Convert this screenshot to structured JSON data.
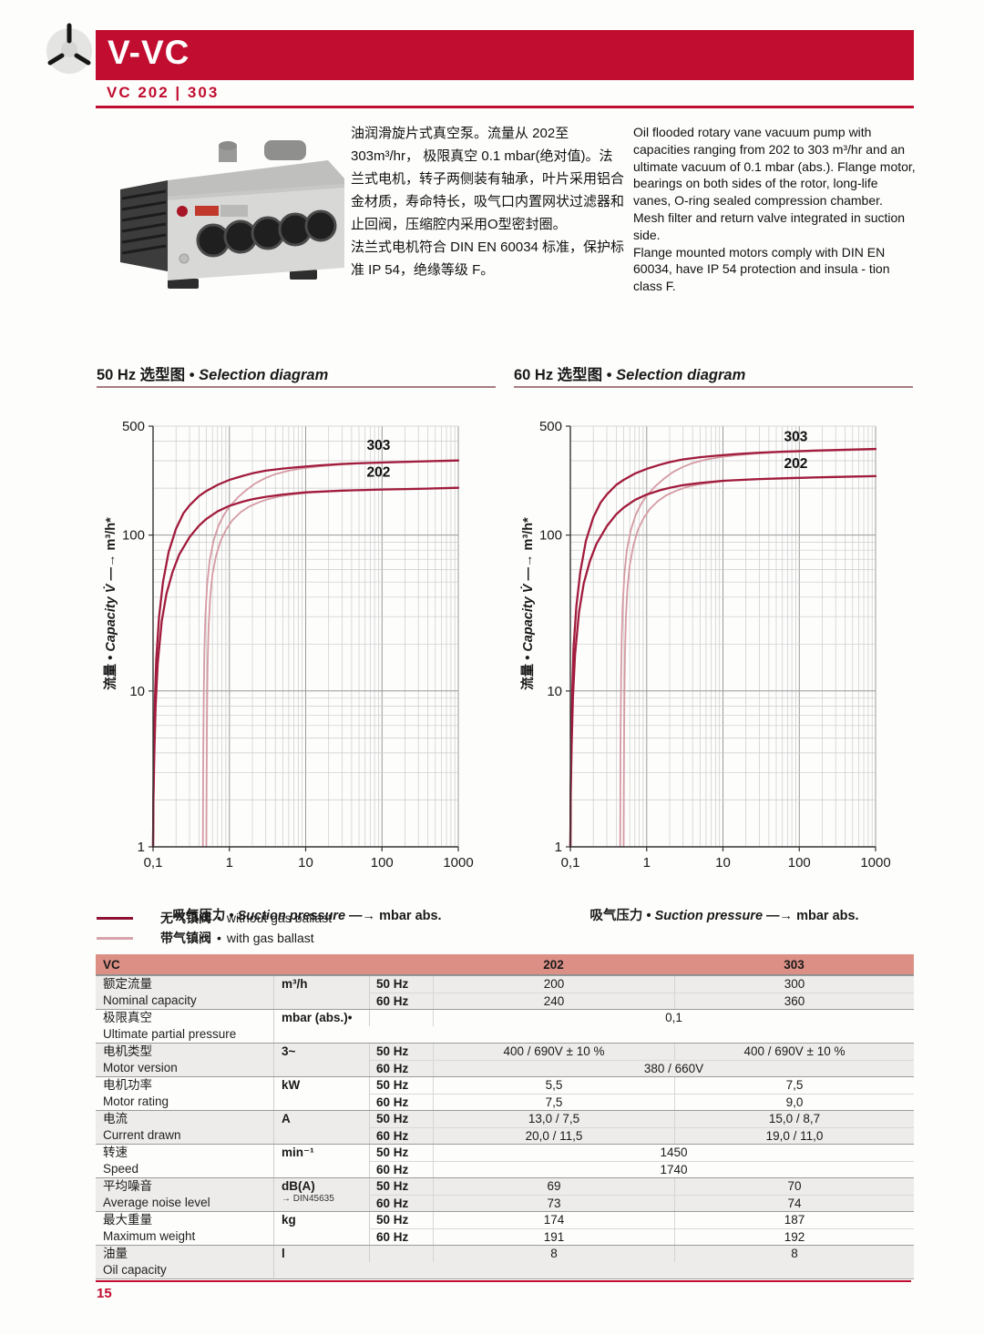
{
  "ui": {
    "title_sep": "•",
    "bullet": "•",
    "arrow": "—→"
  },
  "header": {
    "product": "V-VC",
    "model": "VC 202 | 303",
    "accent": "#c10d2f"
  },
  "intro": {
    "zh_p1": "油润滑旋片式真空泵。流量从 202至 303m³/hr， 极限真空 0.1 mbar(绝对值)。法兰式电机，转子两侧装有轴承，叶片采用铝合金材质，寿命特长，吸气口内置网状过滤器和止回阀，压缩腔内采用O型密封圈。",
    "zh_p2": "法兰式电机符合 DIN EN 60034 标准，保护标准 IP 54，绝缘等级 F。",
    "en_p1": "Oil flooded rotary vane vacuum pump with capacities ranging from 202 to 303 m³/hr and an ultimate vacuum of 0.1 mbar (abs.). Flange motor, bearings on both sides of the rotor, long-life vanes, O-ring sealed compression chamber. Mesh filter and return valve integrated in suction side.",
    "en_p2": "Flange mounted motors comply with DIN EN 60034, have IP 54 protection and insula - tion class F."
  },
  "legend": [
    {
      "zh": "无气镇阀",
      "en": "without gas ballast",
      "color": "#8e1132"
    },
    {
      "zh": "带气镇阀",
      "en": "with gas ballast",
      "color": "#d7a3ab"
    }
  ],
  "chart_data": [
    {
      "type": "line",
      "title_zh": "50 Hz 选型图",
      "title_en": "Selection diagram",
      "xlabel_zh": "吸气压力",
      "xlabel_en": "Suction pressure",
      "xunit": "mbar abs.",
      "ylabel_zh": "流量",
      "ylabel_en": "Capacity V̇",
      "yunit": "m³/h*",
      "xscale": "log",
      "yscale": "log",
      "grid": true,
      "xlim": [
        0.1,
        1000
      ],
      "ylim": [
        1,
        500
      ],
      "xticks": [
        "0,1",
        "1",
        "10",
        "100",
        "1000"
      ],
      "yticks": [
        "1",
        "10",
        "100",
        "500"
      ],
      "series": [
        {
          "name": "303",
          "gas_ballast": false,
          "color": "#a11b3c",
          "points": [
            [
              0.1,
              1
            ],
            [
              0.101,
              2.2
            ],
            [
              0.103,
              4.5
            ],
            [
              0.106,
              9
            ],
            [
              0.11,
              16
            ],
            [
              0.12,
              30
            ],
            [
              0.135,
              50
            ],
            [
              0.16,
              78
            ],
            [
              0.2,
              110
            ],
            [
              0.25,
              138
            ],
            [
              0.3,
              155
            ],
            [
              0.4,
              178
            ],
            [
              0.5,
              192
            ],
            [
              0.7,
              210
            ],
            [
              1,
              226
            ],
            [
              1.5,
              240
            ],
            [
              2,
              249
            ],
            [
              3,
              259
            ],
            [
              5,
              267
            ],
            [
              8,
              273
            ],
            [
              15,
              280
            ],
            [
              30,
              286
            ],
            [
              60,
              290
            ],
            [
              150,
              294
            ],
            [
              400,
              298
            ],
            [
              1000,
              301
            ]
          ]
        },
        {
          "name": "202",
          "gas_ballast": false,
          "color": "#a11b3c",
          "points": [
            [
              0.1,
              1
            ],
            [
              0.101,
              2
            ],
            [
              0.104,
              4
            ],
            [
              0.108,
              8
            ],
            [
              0.115,
              15
            ],
            [
              0.13,
              28
            ],
            [
              0.15,
              42
            ],
            [
              0.18,
              58
            ],
            [
              0.22,
              75
            ],
            [
              0.3,
              97
            ],
            [
              0.4,
              115
            ],
            [
              0.5,
              127
            ],
            [
              0.7,
              142
            ],
            [
              1,
              154
            ],
            [
              1.5,
              164
            ],
            [
              2,
              170
            ],
            [
              3,
              176
            ],
            [
              5,
              182
            ],
            [
              10,
              188
            ],
            [
              30,
              193
            ],
            [
              100,
              196
            ],
            [
              300,
              198
            ],
            [
              1000,
              201
            ]
          ]
        },
        {
          "name": "303",
          "gas_ballast": true,
          "color": "#d59aa3",
          "points": [
            [
              0.45,
              1
            ],
            [
              0.452,
              2.5
            ],
            [
              0.456,
              5
            ],
            [
              0.462,
              10
            ],
            [
              0.47,
              18
            ],
            [
              0.485,
              30
            ],
            [
              0.51,
              48
            ],
            [
              0.55,
              68
            ],
            [
              0.62,
              92
            ],
            [
              0.72,
              115
            ],
            [
              0.85,
              135
            ],
            [
              1,
              152
            ],
            [
              1.3,
              175
            ],
            [
              1.7,
              196
            ],
            [
              2.2,
              215
            ],
            [
              3,
              233
            ],
            [
              4,
              246
            ],
            [
              6,
              259
            ],
            [
              9,
              268
            ],
            [
              15,
              276
            ],
            [
              25,
              282
            ],
            [
              50,
              288
            ],
            [
              120,
              292
            ],
            [
              350,
              296
            ],
            [
              1000,
              300
            ]
          ]
        },
        {
          "name": "202",
          "gas_ballast": true,
          "color": "#d59aa3",
          "points": [
            [
              0.5,
              1
            ],
            [
              0.502,
              2.2
            ],
            [
              0.506,
              4.5
            ],
            [
              0.512,
              9
            ],
            [
              0.52,
              16
            ],
            [
              0.535,
              26
            ],
            [
              0.56,
              40
            ],
            [
              0.6,
              56
            ],
            [
              0.67,
              74
            ],
            [
              0.77,
              92
            ],
            [
              0.9,
              108
            ],
            [
              1.1,
              125
            ],
            [
              1.4,
              140
            ],
            [
              1.8,
              152
            ],
            [
              2.4,
              162
            ],
            [
              3.2,
              170
            ],
            [
              4.5,
              177
            ],
            [
              7,
              183
            ],
            [
              12,
              188
            ],
            [
              25,
              192
            ],
            [
              70,
              195
            ],
            [
              200,
              198
            ],
            [
              1000,
              201
            ]
          ]
        }
      ],
      "labels": [
        {
          "text": "303",
          "x": 90,
          "y": 352
        },
        {
          "text": "202",
          "x": 90,
          "y": 237
        }
      ]
    },
    {
      "type": "line",
      "title_zh": "60 Hz 选型图",
      "title_en": "Selection diagram",
      "xlabel_zh": "吸气压力",
      "xlabel_en": "Suction pressure",
      "xunit": "mbar abs.",
      "ylabel_zh": "流量",
      "ylabel_en": "Capacity V̇",
      "yunit": "m³/h*",
      "xscale": "log",
      "yscale": "log",
      "grid": true,
      "xlim": [
        0.1,
        1000
      ],
      "ylim": [
        1,
        500
      ],
      "xticks": [
        "0,1",
        "1",
        "10",
        "100",
        "1000"
      ],
      "yticks": [
        "1",
        "10",
        "100",
        "500"
      ],
      "series": [
        {
          "name": "303",
          "gas_ballast": false,
          "color": "#a11b3c",
          "points": [
            [
              0.1,
              1
            ],
            [
              0.101,
              2.5
            ],
            [
              0.103,
              5
            ],
            [
              0.106,
              10
            ],
            [
              0.11,
              19
            ],
            [
              0.12,
              35
            ],
            [
              0.135,
              58
            ],
            [
              0.16,
              92
            ],
            [
              0.2,
              130
            ],
            [
              0.25,
              162
            ],
            [
              0.3,
              182
            ],
            [
              0.4,
              210
            ],
            [
              0.5,
              226
            ],
            [
              0.7,
              248
            ],
            [
              1,
              266
            ],
            [
              1.5,
              283
            ],
            [
              2,
              294
            ],
            [
              3,
              306
            ],
            [
              5,
              316
            ],
            [
              8,
              323
            ],
            [
              15,
              331
            ],
            [
              30,
              338
            ],
            [
              60,
              343
            ],
            [
              150,
              348
            ],
            [
              400,
              353
            ],
            [
              1000,
              357
            ]
          ]
        },
        {
          "name": "202",
          "gas_ballast": false,
          "color": "#a11b3c",
          "points": [
            [
              0.1,
              1
            ],
            [
              0.101,
              2.2
            ],
            [
              0.104,
              4.5
            ],
            [
              0.108,
              9
            ],
            [
              0.115,
              17
            ],
            [
              0.13,
              32
            ],
            [
              0.15,
              49
            ],
            [
              0.18,
              68
            ],
            [
              0.22,
              88
            ],
            [
              0.3,
              114
            ],
            [
              0.4,
              136
            ],
            [
              0.5,
              150
            ],
            [
              0.7,
              168
            ],
            [
              1,
              182
            ],
            [
              1.5,
              194
            ],
            [
              2,
              201
            ],
            [
              3,
              209
            ],
            [
              5,
              216
            ],
            [
              10,
              223
            ],
            [
              30,
              229
            ],
            [
              100,
              233
            ],
            [
              300,
              236
            ],
            [
              1000,
              239
            ]
          ]
        },
        {
          "name": "303",
          "gas_ballast": true,
          "color": "#d59aa3",
          "points": [
            [
              0.45,
              1
            ],
            [
              0.452,
              2.8
            ],
            [
              0.456,
              6
            ],
            [
              0.462,
              12
            ],
            [
              0.47,
              21
            ],
            [
              0.485,
              35
            ],
            [
              0.51,
              56
            ],
            [
              0.55,
              80
            ],
            [
              0.62,
              108
            ],
            [
              0.72,
              135
            ],
            [
              0.85,
              159
            ],
            [
              1,
              179
            ],
            [
              1.3,
              206
            ],
            [
              1.7,
              231
            ],
            [
              2.2,
              253
            ],
            [
              3,
              274
            ],
            [
              4,
              290
            ],
            [
              6,
              305
            ],
            [
              9,
              316
            ],
            [
              15,
              325
            ],
            [
              25,
              332
            ],
            [
              50,
              339
            ],
            [
              120,
              344
            ],
            [
              350,
              349
            ],
            [
              1000,
              354
            ]
          ]
        },
        {
          "name": "202",
          "gas_ballast": true,
          "color": "#d59aa3",
          "points": [
            [
              0.5,
              1
            ],
            [
              0.502,
              2.5
            ],
            [
              0.506,
              5
            ],
            [
              0.512,
              10
            ],
            [
              0.52,
              18
            ],
            [
              0.535,
              30
            ],
            [
              0.56,
              46
            ],
            [
              0.6,
              64
            ],
            [
              0.67,
              86
            ],
            [
              0.77,
              108
            ],
            [
              0.9,
              127
            ],
            [
              1.1,
              147
            ],
            [
              1.4,
              165
            ],
            [
              1.8,
              180
            ],
            [
              2.4,
              192
            ],
            [
              3.2,
              202
            ],
            [
              4.5,
              210
            ],
            [
              7,
              217
            ],
            [
              12,
              224
            ],
            [
              25,
              229
            ],
            [
              70,
              233
            ],
            [
              200,
              236
            ],
            [
              1000,
              240
            ]
          ]
        }
      ],
      "labels": [
        {
          "text": "303",
          "x": 90,
          "y": 400
        },
        {
          "text": "202",
          "x": 90,
          "y": 270
        }
      ]
    }
  ],
  "table": {
    "title": "VC",
    "col_202": "202",
    "col_303": "303",
    "rows": [
      {
        "zh": "额定流量",
        "en": "Nominal capacity",
        "unit": "m³/h",
        "shaded": true,
        "sub": [
          {
            "hz": "50 Hz",
            "v202": "200",
            "v303": "300"
          },
          {
            "hz": "60 Hz",
            "v202": "240",
            "v303": "360"
          }
        ]
      },
      {
        "zh": "极限真空",
        "en": "Ultimate partial pressure",
        "unit": "mbar (abs.)•",
        "shaded": false,
        "sub": [
          {
            "hz": "",
            "span": "0,1"
          }
        ]
      },
      {
        "zh": "电机类型",
        "en": "Motor version",
        "unit": "3~",
        "shaded": true,
        "sub": [
          {
            "hz": "50 Hz",
            "v202": "400 / 690V ± 10 %",
            "v303": "400 / 690V ± 10 %"
          },
          {
            "hz": "60 Hz",
            "span": "380 / 660V"
          }
        ]
      },
      {
        "zh": "电机功率",
        "en": "Motor rating",
        "unit": "kW",
        "shaded": false,
        "sub": [
          {
            "hz": "50 Hz",
            "v202": "5,5",
            "v303": "7,5"
          },
          {
            "hz": "60 Hz",
            "v202": "7,5",
            "v303": "9,0"
          }
        ]
      },
      {
        "zh": "电流",
        "en": "Current drawn",
        "unit": "A",
        "shaded": true,
        "sub": [
          {
            "hz": "50 Hz",
            "v202": "13,0 / 7,5",
            "v303": "15,0 / 8,7"
          },
          {
            "hz": "60 Hz",
            "v202": "20,0 / 11,5",
            "v303": "19,0 / 11,0"
          }
        ]
      },
      {
        "zh": "转速",
        "en": "Speed",
        "unit": "min⁻¹",
        "shaded": false,
        "sub": [
          {
            "hz": "50 Hz",
            "span": "1450"
          },
          {
            "hz": "60 Hz",
            "span": "1740"
          }
        ]
      },
      {
        "zh": "平均噪音",
        "en": "Average noise level",
        "unit": "dB(A)",
        "unit_note": "→ DIN45635",
        "shaded": true,
        "sub": [
          {
            "hz": "50 Hz",
            "v202": "69",
            "v303": "70"
          },
          {
            "hz": "60 Hz",
            "v202": "73",
            "v303": "74"
          }
        ]
      },
      {
        "zh": "最大重量",
        "en": "Maximum weight",
        "unit": "kg",
        "shaded": false,
        "sub": [
          {
            "hz": "50 Hz",
            "v202": "174",
            "v303": "187"
          },
          {
            "hz": "60 Hz",
            "v202": "191",
            "v303": "192"
          }
        ]
      },
      {
        "zh": "油量",
        "en": "Oil capacity",
        "unit": "l",
        "shaded": true,
        "sub": [
          {
            "hz": "",
            "v202": "8",
            "v303": "8"
          }
        ]
      }
    ]
  },
  "page": {
    "number": "15"
  }
}
